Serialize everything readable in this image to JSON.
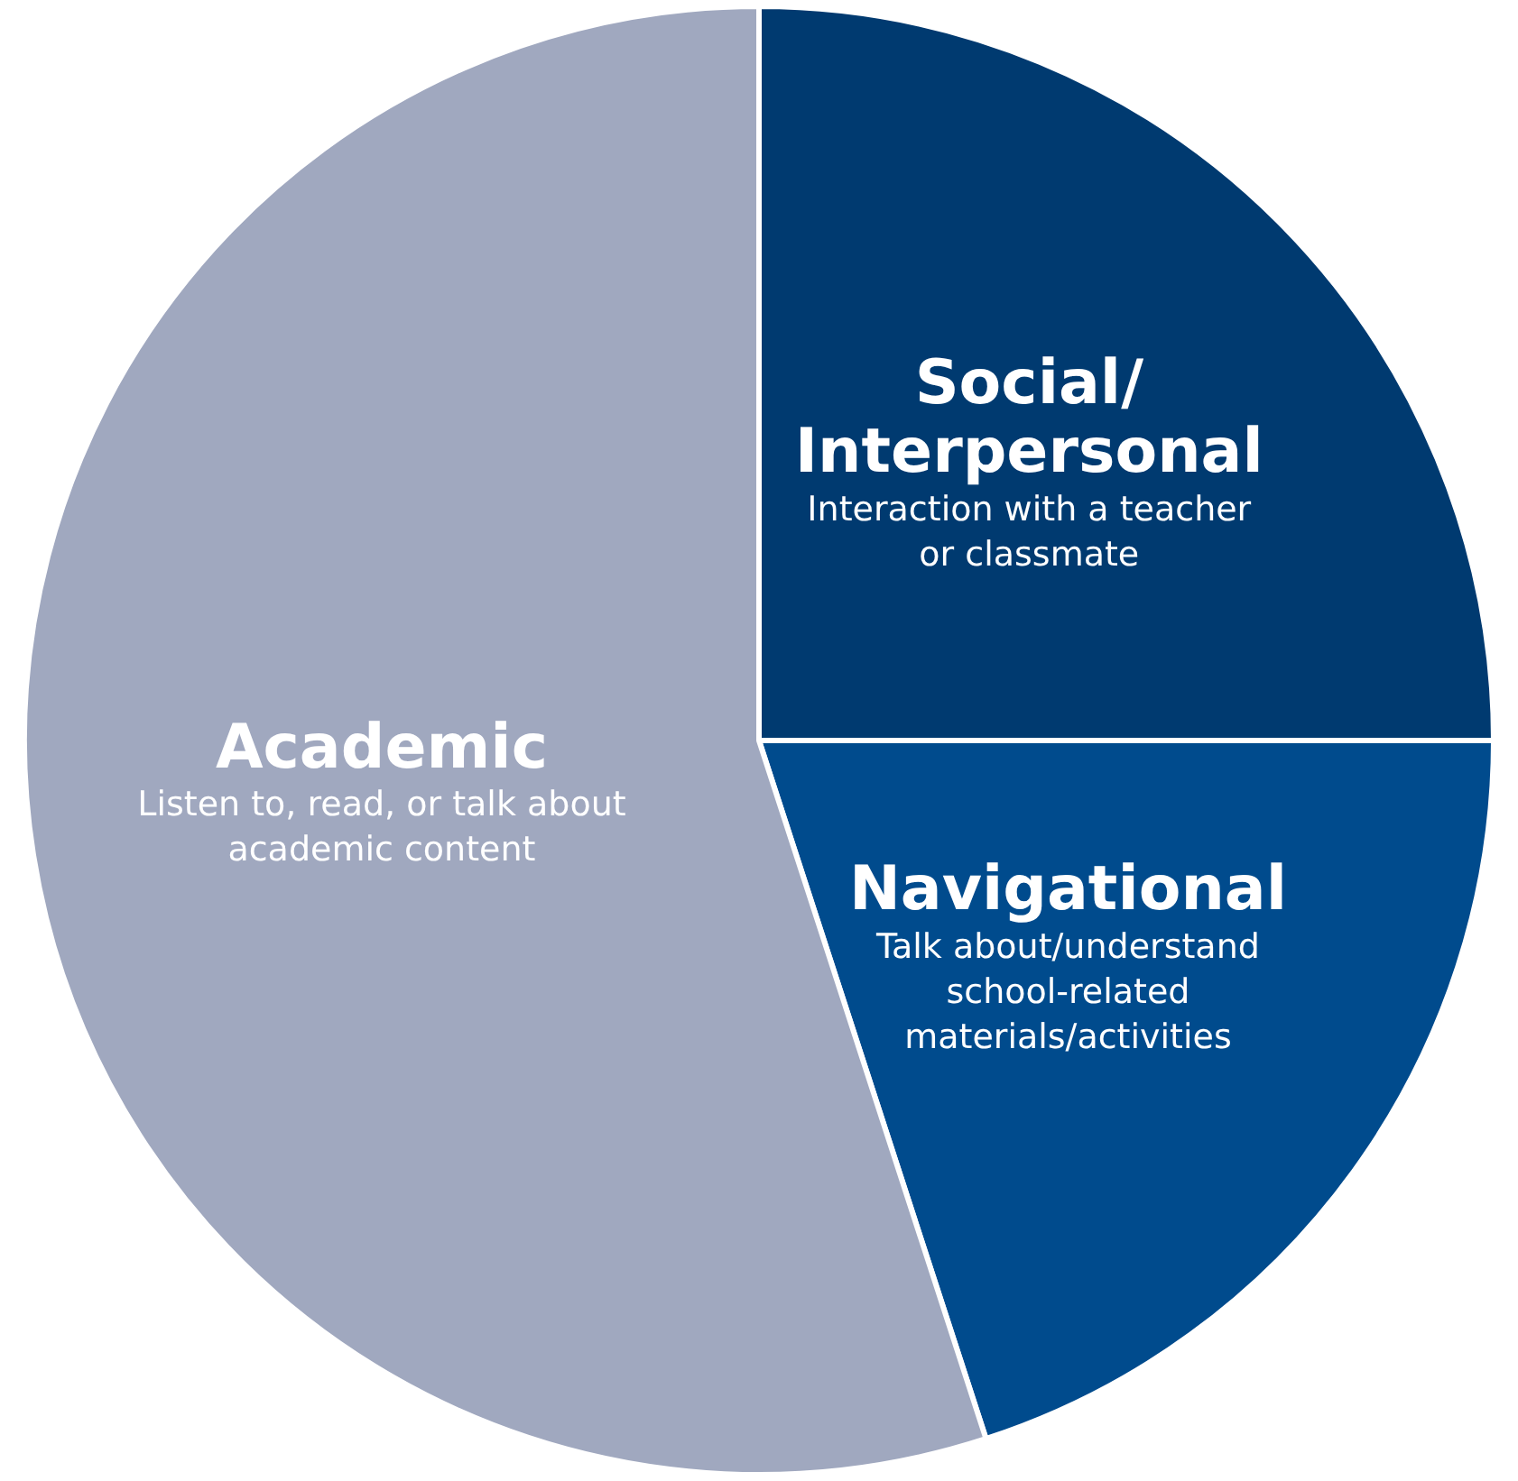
{
  "chart_data": {
    "type": "pie",
    "categories": [
      "Social/\nInterpersonal",
      "Navigational",
      "Academic"
    ],
    "values": [
      25,
      20,
      55
    ],
    "colors": [
      "#003a70",
      "#004b8d",
      "#a0a8bf"
    ],
    "annotations": [
      "Interaction with a teacher\nor classmate",
      "Talk about/understand\nschool-related\nmaterials/activities",
      "Listen to, read, or talk about\nacademic content"
    ],
    "legend": false
  }
}
